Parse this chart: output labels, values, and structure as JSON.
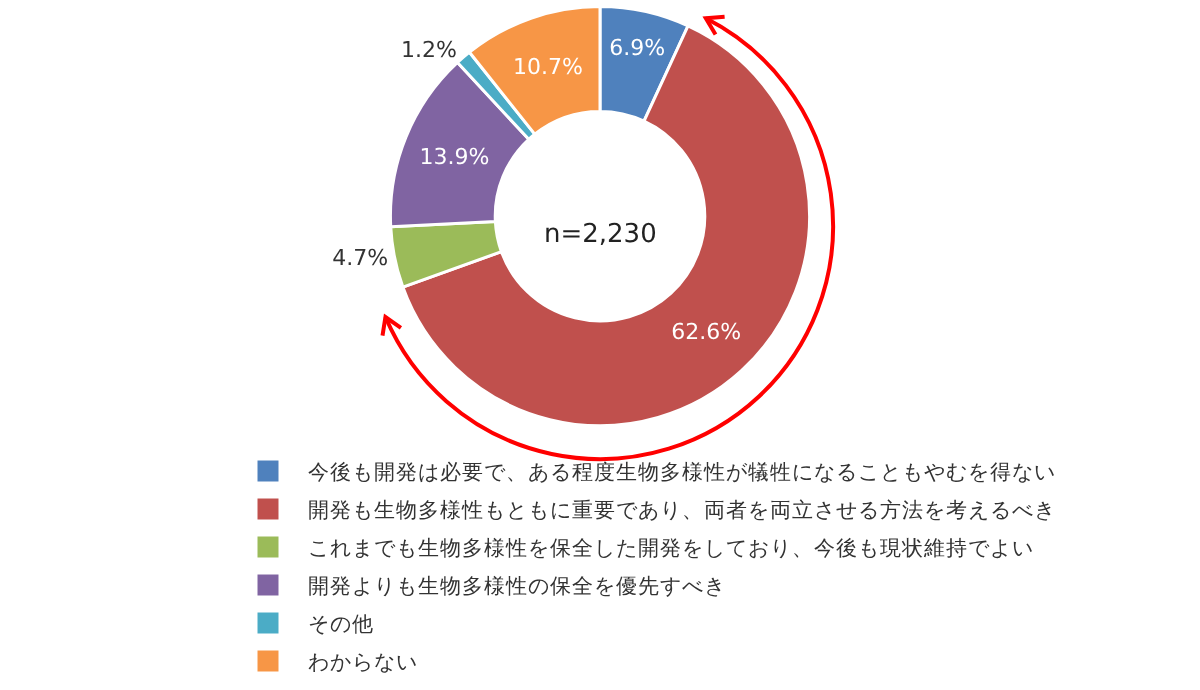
{
  "chart_data": {
    "type": "donut",
    "categories": [
      "今後も開発は必要で、ある程度生物多様性が犠牲になることもやむを得ない",
      "開発も生物多様性もともに重要であり、両者を両立させる方法を考えるべき",
      "これまでも生物多様性を保全した開発をしており、今後も現状維持でよい",
      "開発よりも生物多様性の保全を優先すべき",
      "その他",
      "わからない"
    ],
    "values": [
      6.9,
      62.6,
      4.7,
      13.9,
      1.2,
      10.7
    ],
    "value_labels": [
      "6.9%",
      "62.6%",
      "4.7%",
      "13.9%",
      "1.2%",
      "10.7%"
    ],
    "colors": [
      "#4f81bd",
      "#c0504d",
      "#9bbb59",
      "#8064a2",
      "#4bacc6",
      "#f79646"
    ],
    "annotations": [
      "n=2,230"
    ],
    "legend": "bottom"
  }
}
